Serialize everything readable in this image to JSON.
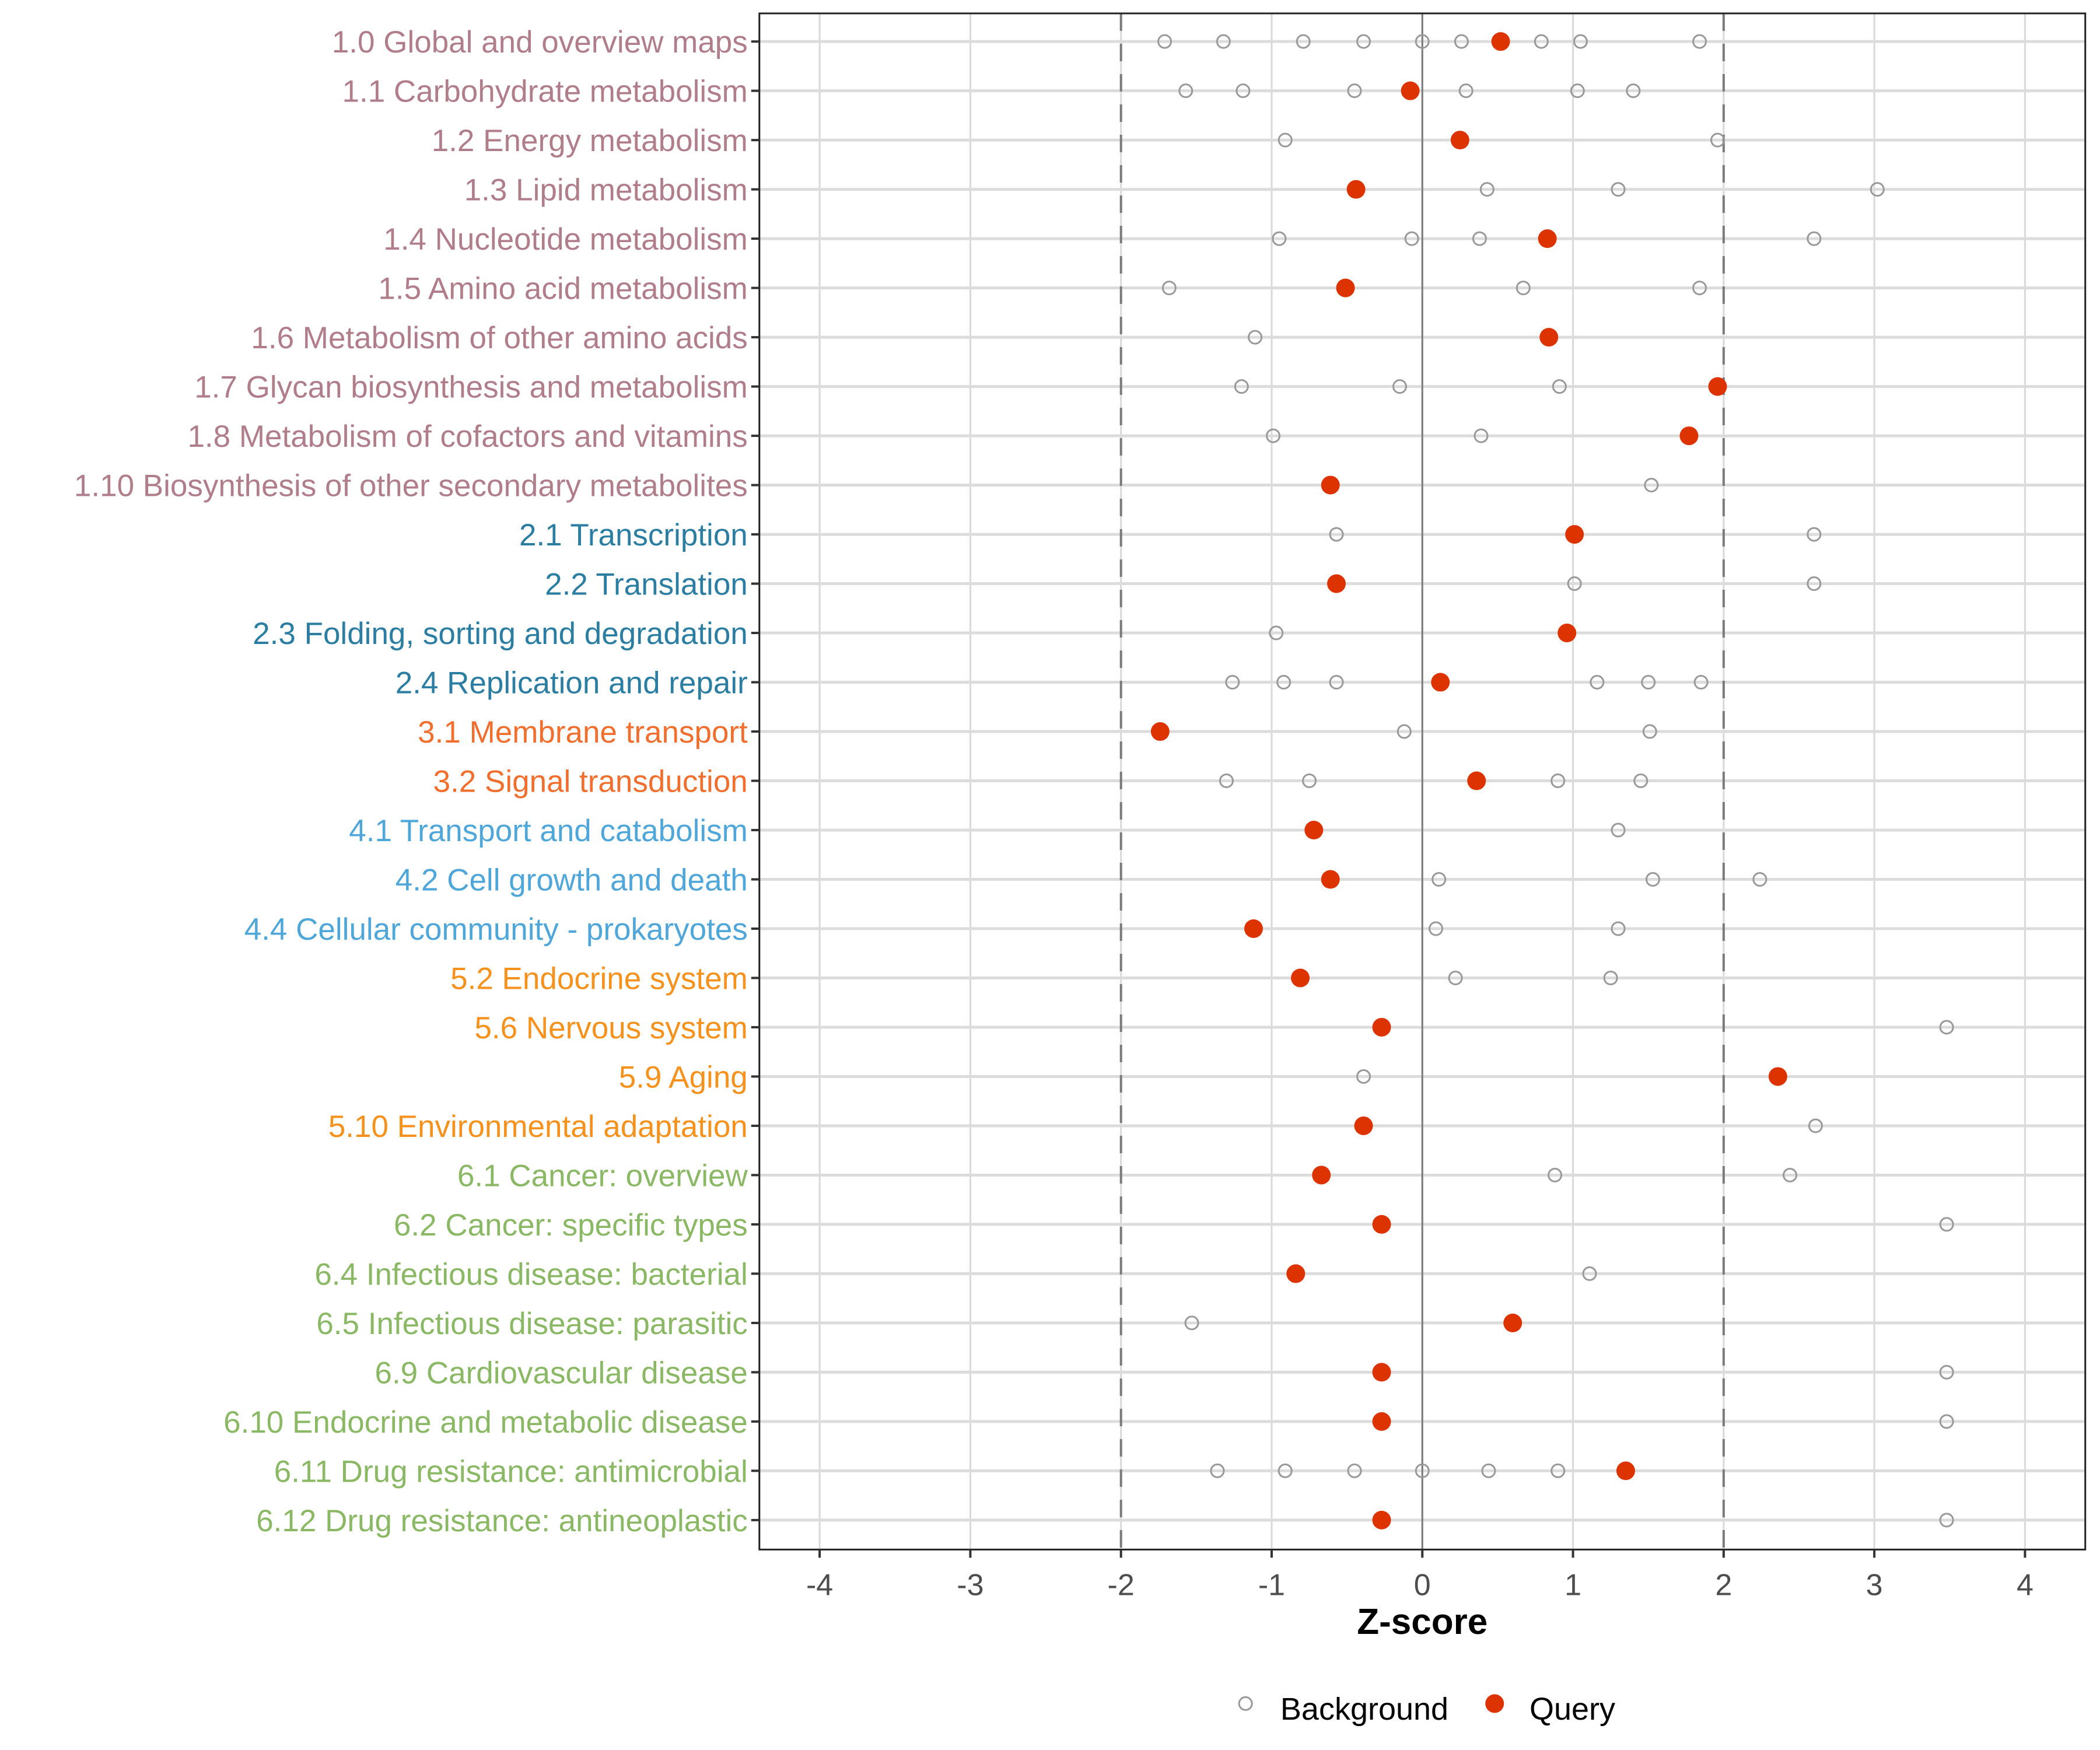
{
  "chart_data": {
    "type": "scatter",
    "title": "",
    "xlabel": "Z-score",
    "ylabel": "",
    "xlim": [
      -4.4,
      4.4
    ],
    "x_ticks": [
      -4,
      -3,
      -2,
      -1,
      0,
      1,
      2,
      3,
      4
    ],
    "x_tick_labels": [
      "-4",
      "-3",
      "-2",
      "-1",
      "0",
      "1",
      "2",
      "3",
      "4"
    ],
    "reference_lines": {
      "dashed": [
        -2,
        2
      ],
      "solid": [
        0
      ]
    },
    "grid": true,
    "legend": {
      "position": "bottom",
      "entries": [
        {
          "name": "Background",
          "marker": "open-circle",
          "color": "#999999"
        },
        {
          "name": "Query",
          "marker": "filled-circle",
          "color": "#dd3300"
        }
      ]
    },
    "group_colors": {
      "1": "#b07d8b",
      "2": "#2b7ea1",
      "3": "#f06f2e",
      "4": "#4fa6d9",
      "5": "#f5921e",
      "6": "#8ab864"
    },
    "categories": [
      {
        "label": "1.0 Global and overview maps",
        "group": "1",
        "background": [
          -1.71,
          -1.32,
          -0.79,
          -0.39,
          0.0,
          0.26,
          0.79,
          1.05,
          1.84
        ],
        "query": 0.52
      },
      {
        "label": "1.1 Carbohydrate metabolism",
        "group": "1",
        "background": [
          -1.57,
          -1.19,
          -0.45,
          0.29,
          1.03,
          1.4
        ],
        "query": -0.08
      },
      {
        "label": "1.2 Energy metabolism",
        "group": "1",
        "background": [
          -0.91,
          1.96
        ],
        "query": 0.25
      },
      {
        "label": "1.3 Lipid metabolism",
        "group": "1",
        "background": [
          0.43,
          1.3,
          3.02
        ],
        "query": -0.44
      },
      {
        "label": "1.4 Nucleotide metabolism",
        "group": "1",
        "background": [
          -0.95,
          -0.07,
          0.38,
          2.6
        ],
        "query": 0.83
      },
      {
        "label": "1.5 Amino acid metabolism",
        "group": "1",
        "background": [
          -1.68,
          0.67,
          1.84
        ],
        "query": -0.51
      },
      {
        "label": "1.6 Metabolism of other amino acids",
        "group": "1",
        "background": [
          -1.11
        ],
        "query": 0.84
      },
      {
        "label": "1.7 Glycan biosynthesis and metabolism",
        "group": "1",
        "background": [
          -1.2,
          -0.15,
          0.91
        ],
        "query": 1.96
      },
      {
        "label": "1.8 Metabolism of cofactors and vitamins",
        "group": "1",
        "background": [
          -0.99,
          0.39
        ],
        "query": 1.77
      },
      {
        "label": "1.10 Biosynthesis of other secondary metabolites",
        "group": "1",
        "background": [
          1.52
        ],
        "query": -0.61
      },
      {
        "label": "2.1 Transcription",
        "group": "2",
        "background": [
          -0.57,
          2.6
        ],
        "query": 1.01
      },
      {
        "label": "2.2 Translation",
        "group": "2",
        "background": [
          1.01,
          2.6
        ],
        "query": -0.57
      },
      {
        "label": "2.3 Folding, sorting and degradation",
        "group": "2",
        "background": [
          -0.97
        ],
        "query": 0.96
      },
      {
        "label": "2.4 Replication and repair",
        "group": "2",
        "background": [
          -1.26,
          -0.92,
          -0.57,
          1.16,
          1.5,
          1.85
        ],
        "query": 0.12
      },
      {
        "label": "3.1 Membrane transport",
        "group": "3",
        "background": [
          -0.12,
          1.51
        ],
        "query": -1.74
      },
      {
        "label": "3.2 Signal transduction",
        "group": "3",
        "background": [
          -1.3,
          -0.75,
          0.9,
          1.45
        ],
        "query": 0.36
      },
      {
        "label": "4.1 Transport and catabolism",
        "group": "4",
        "background": [
          1.3
        ],
        "query": -0.72
      },
      {
        "label": "4.2 Cell growth and death",
        "group": "4",
        "background": [
          0.11,
          1.53,
          2.24
        ],
        "query": -0.61
      },
      {
        "label": "4.4 Cellular community - prokaryotes",
        "group": "4",
        "background": [
          0.09,
          1.3
        ],
        "query": -1.12
      },
      {
        "label": "5.2 Endocrine system",
        "group": "5",
        "background": [
          0.22,
          1.25
        ],
        "query": -0.81
      },
      {
        "label": "5.6 Nervous system",
        "group": "5",
        "background": [
          3.48
        ],
        "query": -0.27
      },
      {
        "label": "5.9 Aging",
        "group": "5",
        "background": [
          -0.39
        ],
        "query": 2.36
      },
      {
        "label": "5.10 Environmental adaptation",
        "group": "5",
        "background": [
          2.61
        ],
        "query": -0.39
      },
      {
        "label": "6.1 Cancer: overview",
        "group": "6",
        "background": [
          0.88,
          2.44
        ],
        "query": -0.67
      },
      {
        "label": "6.2 Cancer: specific types",
        "group": "6",
        "background": [
          3.48
        ],
        "query": -0.27
      },
      {
        "label": "6.4 Infectious disease: bacterial",
        "group": "6",
        "background": [
          1.11
        ],
        "query": -0.84
      },
      {
        "label": "6.5 Infectious disease: parasitic",
        "group": "6",
        "background": [
          -1.53
        ],
        "query": 0.6
      },
      {
        "label": "6.9 Cardiovascular disease",
        "group": "6",
        "background": [
          3.48
        ],
        "query": -0.27
      },
      {
        "label": "6.10 Endocrine and metabolic disease",
        "group": "6",
        "background": [
          3.48
        ],
        "query": -0.27
      },
      {
        "label": "6.11 Drug resistance: antimicrobial",
        "group": "6",
        "background": [
          -1.36,
          -0.91,
          -0.45,
          0.0,
          0.44,
          0.9
        ],
        "query": 1.35
      },
      {
        "label": "6.12 Drug resistance: antineoplastic",
        "group": "6",
        "background": [
          3.48
        ],
        "query": -0.27
      }
    ]
  }
}
